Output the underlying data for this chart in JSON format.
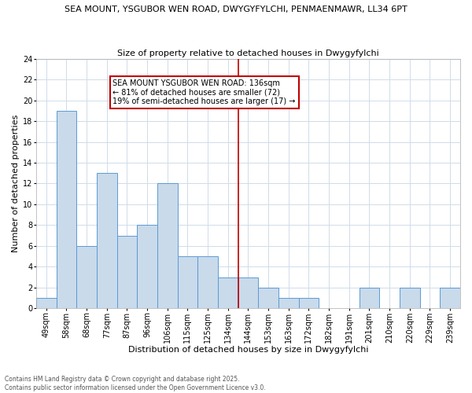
{
  "title_line1": "SEA MOUNT, YSGUBOR WEN ROAD, DWYGYFYLCHI, PENMAENMAWR, LL34 6PT",
  "title_line2": "Size of property relative to detached houses in Dwygyfylchi",
  "xlabel": "Distribution of detached houses by size in Dwygyfylchi",
  "ylabel": "Number of detached properties",
  "categories": [
    "49sqm",
    "58sqm",
    "68sqm",
    "77sqm",
    "87sqm",
    "96sqm",
    "106sqm",
    "115sqm",
    "125sqm",
    "134sqm",
    "144sqm",
    "153sqm",
    "163sqm",
    "172sqm",
    "182sqm",
    "191sqm",
    "201sqm",
    "210sqm",
    "220sqm",
    "229sqm",
    "239sqm"
  ],
  "values": [
    1,
    19,
    6,
    13,
    7,
    8,
    12,
    5,
    5,
    3,
    3,
    2,
    1,
    1,
    0,
    0,
    2,
    0,
    2,
    0,
    2
  ],
  "bar_color": "#c9daea",
  "bar_edge_color": "#5b9bd5",
  "vline_x_index": 9,
  "vline_color": "#c00000",
  "ylim": [
    0,
    24
  ],
  "yticks": [
    0,
    2,
    4,
    6,
    8,
    10,
    12,
    14,
    16,
    18,
    20,
    22,
    24
  ],
  "annotation_text": "SEA MOUNT YSGUBOR WEN ROAD: 136sqm\n← 81% of detached houses are smaller (72)\n19% of semi-detached houses are larger (17) →",
  "annotation_box_color": "#c00000",
  "footer_text": "Contains HM Land Registry data © Crown copyright and database right 2025.\nContains public sector information licensed under the Open Government Licence v3.0.",
  "background_color": "#ffffff",
  "grid_color": "#d0dce8",
  "title_fontsize": 8.0,
  "axis_label_fontsize": 8.0,
  "tick_fontsize": 7.0,
  "annotation_fontsize": 7.0,
  "footer_fontsize": 5.5
}
